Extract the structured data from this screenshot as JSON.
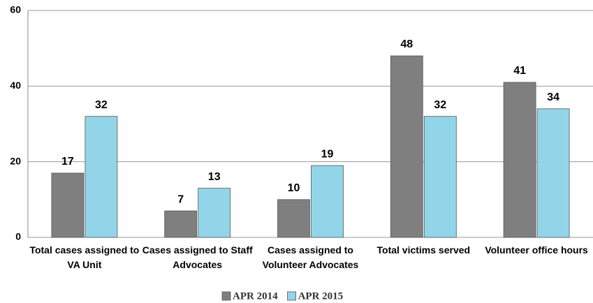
{
  "chart_data": {
    "type": "bar",
    "categories": [
      "Total cases assigned to VA Unit",
      "Cases assigned to Staff Advocates",
      "Cases assigned to Volunteer Advocates",
      "Total victims served",
      "Volunteer office hours"
    ],
    "series": [
      {
        "name": "APR 2014",
        "color": "#7f7f7f",
        "values": [
          17,
          7,
          10,
          48,
          41
        ]
      },
      {
        "name": "APR 2015",
        "color": "#92d5e8",
        "values": [
          32,
          13,
          19,
          32,
          34
        ]
      }
    ],
    "ylim": [
      0,
      60
    ],
    "yticks": [
      0,
      20,
      40,
      60
    ],
    "grid": true,
    "legend": "bottom"
  }
}
